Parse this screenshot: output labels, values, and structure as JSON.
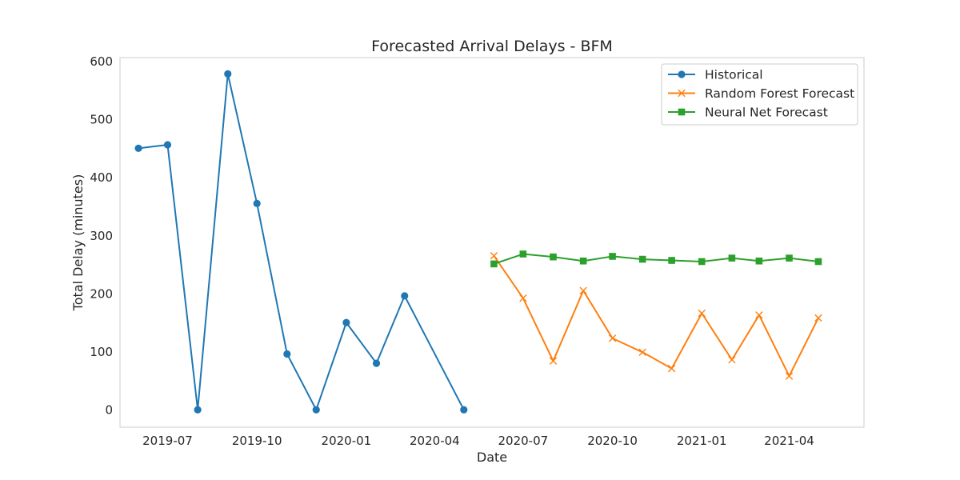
{
  "chart_data": {
    "type": "line",
    "title": "Forecasted Arrival Delays - BFM",
    "xlabel": "Date",
    "ylabel": "Total Delay (minutes)",
    "x_ticks": [
      "2019-07",
      "2019-10",
      "2020-01",
      "2020-04",
      "2020-07",
      "2020-10",
      "2021-01",
      "2021-04"
    ],
    "y_ticks": [
      0,
      100,
      200,
      300,
      400,
      500,
      600
    ],
    "ylim": [
      -30,
      606
    ],
    "xlim": [
      "2019-05-13",
      "2021-06-17"
    ],
    "grid": false,
    "legend_position": "top-right",
    "series": [
      {
        "name": "Historical",
        "marker": "circle",
        "color": "#1f77b4",
        "x": [
          "2019-06-01",
          "2019-07-01",
          "2019-08-01",
          "2019-09-01",
          "2019-10-01",
          "2019-11-01",
          "2019-12-01",
          "2020-01-01",
          "2020-02-01",
          "2020-03-01",
          "2020-05-01"
        ],
        "values": [
          450,
          456,
          0,
          578,
          355,
          96,
          0,
          150,
          80,
          196,
          0
        ]
      },
      {
        "name": "Random Forest Forecast",
        "marker": "x",
        "color": "#ff7f0e",
        "x": [
          "2020-06-01",
          "2020-07-01",
          "2020-08-01",
          "2020-09-01",
          "2020-10-01",
          "2020-11-01",
          "2020-12-01",
          "2021-01-01",
          "2021-02-01",
          "2021-03-01",
          "2021-04-01",
          "2021-05-01"
        ],
        "values": [
          265,
          192,
          84,
          205,
          123,
          99,
          71,
          166,
          86,
          163,
          58,
          158
        ]
      },
      {
        "name": "Neural Net Forecast",
        "marker": "square",
        "color": "#2ca02c",
        "x": [
          "2020-06-01",
          "2020-07-01",
          "2020-08-01",
          "2020-09-01",
          "2020-10-01",
          "2020-11-01",
          "2020-12-01",
          "2021-01-01",
          "2021-02-01",
          "2021-03-01",
          "2021-04-01",
          "2021-05-01"
        ],
        "values": [
          251,
          268,
          263,
          256,
          264,
          259,
          257,
          255,
          261,
          256,
          261,
          255
        ]
      }
    ]
  }
}
